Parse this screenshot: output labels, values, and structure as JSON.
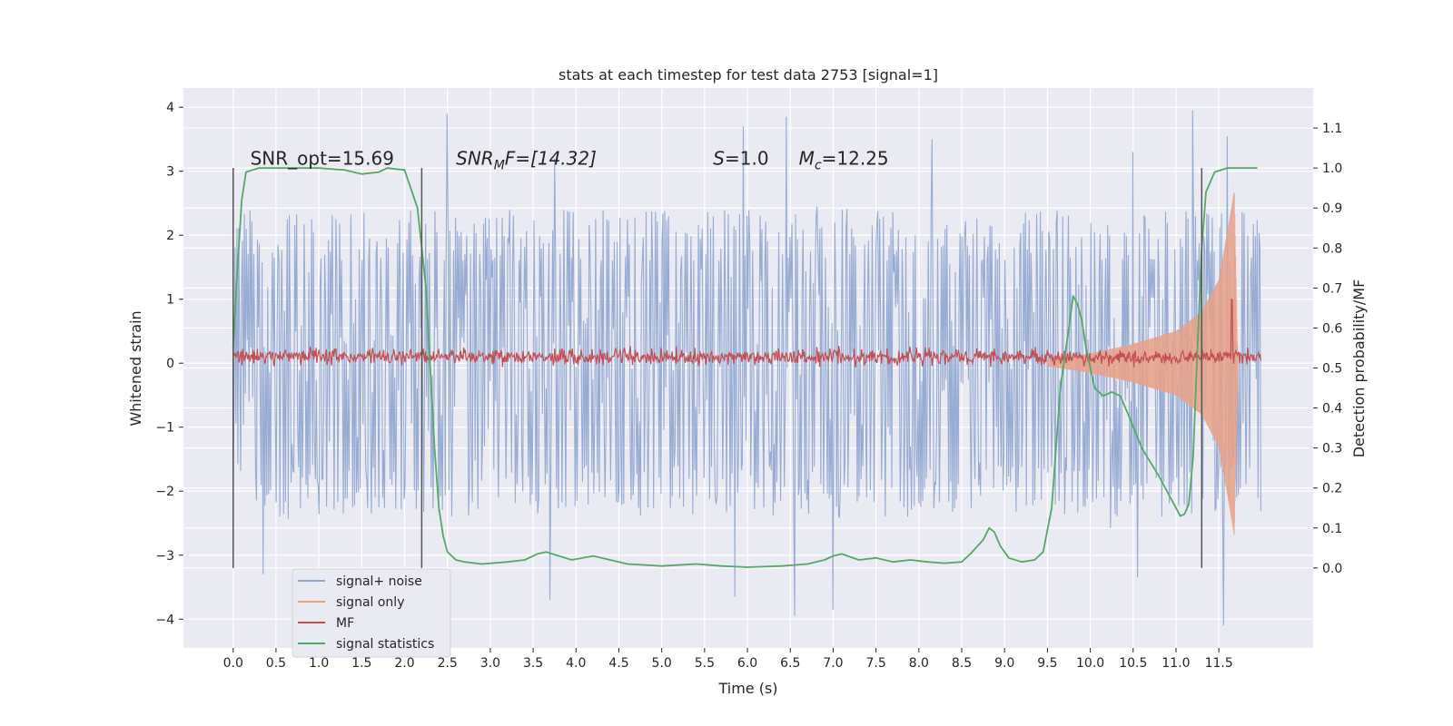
{
  "chart_data": {
    "type": "line",
    "title": "stats at each timestep for test data 2753 [signal=1]",
    "xlabel": "Time (s)",
    "ylabel": "Whitened strain",
    "ylabel_right": "Detection probability/MF",
    "xlim": [
      -0.58,
      12.6
    ],
    "ylim": [
      -4.45,
      4.3
    ],
    "ylim_right": [
      -0.2,
      1.2
    ],
    "x_ticks": [
      0.0,
      0.5,
      1.0,
      1.5,
      2.0,
      2.5,
      3.0,
      3.5,
      4.0,
      4.5,
      5.0,
      5.5,
      6.0,
      6.5,
      7.0,
      7.5,
      8.0,
      8.5,
      9.0,
      9.5,
      10.0,
      10.5,
      11.0,
      11.5
    ],
    "x_tick_labels": [
      "0.0",
      "0.5",
      "1.0",
      "1.5",
      "2.0",
      "2.5",
      "3.0",
      "3.5",
      "4.0",
      "4.5",
      "5.0",
      "5.5",
      "6.0",
      "6.5",
      "7.0",
      "7.5",
      "8.0",
      "8.5",
      "9.0",
      "9.5",
      "10.0",
      "10.5",
      "11.0",
      "11.5"
    ],
    "y_ticks": [
      -4,
      -3,
      -2,
      -1,
      0,
      1,
      2,
      3,
      4
    ],
    "y_tick_labels": [
      "−4",
      "−3",
      "−2",
      "−1",
      "0",
      "1",
      "2",
      "3",
      "4"
    ],
    "y_right_ticks": [
      0.0,
      0.1,
      0.2,
      0.3,
      0.4,
      0.5,
      0.6,
      0.7,
      0.8,
      0.9,
      1.0,
      1.1
    ],
    "y_right_tick_labels": [
      "0.0",
      "0.1",
      "0.2",
      "0.3",
      "0.4",
      "0.5",
      "0.6",
      "0.7",
      "0.8",
      "0.9",
      "1.0",
      "1.1"
    ],
    "grid": true,
    "legend_position": "bottom-left",
    "annotations": [
      {
        "text": "SNR_opt=15.69",
        "x": 0.2,
        "y": 3.1
      },
      {
        "text": "SNR",
        "sub": "M",
        "tail": "F=[14.32]",
        "italic": true,
        "x": 2.6,
        "y": 3.1
      },
      {
        "text": "S",
        "tail": "=1.0",
        "italic": true,
        "x": 5.6,
        "y": 3.1
      },
      {
        "text": "M",
        "sub": "c",
        "tail": "=12.25",
        "italic": true,
        "x": 6.6,
        "y": 3.1
      }
    ],
    "vlines": [
      {
        "x": 0.0,
        "ymin": -3.2,
        "ymax": 3.05
      },
      {
        "x": 2.2,
        "ymin": -3.2,
        "ymax": 3.05
      },
      {
        "x": 11.3,
        "ymin": -3.2,
        "ymax": 3.05
      }
    ],
    "series": [
      {
        "name": "signal+ noise",
        "color": "#92a8d1",
        "axis": "left",
        "style": "dense-noise",
        "x_range": [
          0.0,
          11.99
        ],
        "envelope": [
          2.0,
          -2.0
        ],
        "peaks": [
          {
            "x": 2.5,
            "y": 3.9
          },
          {
            "x": 5.95,
            "y": 3.7
          },
          {
            "x": 6.45,
            "y": 3.85
          },
          {
            "x": 11.2,
            "y": 3.95
          },
          {
            "x": 11.6,
            "y": 3.55
          },
          {
            "x": 3.75,
            "y": 3.2
          },
          {
            "x": 8.15,
            "y": 3.5
          },
          {
            "x": 10.5,
            "y": 3.3
          },
          {
            "x": 3.7,
            "y": -3.7
          },
          {
            "x": 5.85,
            "y": -3.65
          },
          {
            "x": 6.55,
            "y": -3.95
          },
          {
            "x": 7.0,
            "y": -3.85
          },
          {
            "x": 11.55,
            "y": -4.1
          },
          {
            "x": 10.55,
            "y": -3.35
          },
          {
            "x": 0.35,
            "y": -3.3
          }
        ]
      },
      {
        "name": "signal only",
        "color": "#e8a086",
        "axis": "left",
        "style": "chirp",
        "x_range": [
          9.5,
          11.72
        ],
        "amplitude": [
          [
            9.5,
            0.05
          ],
          [
            10.0,
            0.15
          ],
          [
            10.5,
            0.3
          ],
          [
            11.0,
            0.5
          ],
          [
            11.3,
            0.8
          ],
          [
            11.5,
            1.3
          ],
          [
            11.62,
            2.2
          ],
          [
            11.68,
            2.7
          ],
          [
            11.72,
            0.0
          ]
        ]
      },
      {
        "name": "MF",
        "color": "#c44e52",
        "axis": "left",
        "style": "noise-band",
        "x_range": [
          0.0,
          11.99
        ],
        "center": 0.1,
        "spread": 0.1,
        "spike": {
          "x": 11.65,
          "y": 1.0
        }
      },
      {
        "name": "signal statistics",
        "color": "#55a868",
        "axis": "right",
        "style": "line",
        "x": [
          0.0,
          0.05,
          0.1,
          0.15,
          0.3,
          0.6,
          1.0,
          1.3,
          1.5,
          1.7,
          1.8,
          2.0,
          2.15,
          2.25,
          2.3,
          2.35,
          2.4,
          2.45,
          2.5,
          2.55,
          2.6,
          2.7,
          2.9,
          3.2,
          3.4,
          3.55,
          3.65,
          3.8,
          3.95,
          4.2,
          4.4,
          4.6,
          5.0,
          5.4,
          5.7,
          6.0,
          6.4,
          6.7,
          6.9,
          7.0,
          7.1,
          7.3,
          7.5,
          7.7,
          7.9,
          8.1,
          8.3,
          8.5,
          8.6,
          8.75,
          8.82,
          8.88,
          8.95,
          9.05,
          9.2,
          9.35,
          9.45,
          9.55,
          9.65,
          9.75,
          9.8,
          9.85,
          9.9,
          9.95,
          10.05,
          10.15,
          10.25,
          10.35,
          10.45,
          10.6,
          10.8,
          11.0,
          11.05,
          11.1,
          11.15,
          11.2,
          11.25,
          11.3,
          11.35,
          11.45,
          11.6,
          11.8,
          11.95
        ],
        "values": [
          0.55,
          0.75,
          0.92,
          0.99,
          1.0,
          1.0,
          1.0,
          0.995,
          0.985,
          0.99,
          1.0,
          0.995,
          0.9,
          0.7,
          0.5,
          0.3,
          0.15,
          0.08,
          0.04,
          0.03,
          0.02,
          0.015,
          0.01,
          0.015,
          0.02,
          0.035,
          0.04,
          0.03,
          0.02,
          0.03,
          0.02,
          0.01,
          0.005,
          0.01,
          0.005,
          0.002,
          0.005,
          0.01,
          0.02,
          0.03,
          0.035,
          0.02,
          0.025,
          0.015,
          0.02,
          0.015,
          0.012,
          0.015,
          0.035,
          0.07,
          0.1,
          0.09,
          0.055,
          0.025,
          0.015,
          0.02,
          0.04,
          0.15,
          0.45,
          0.6,
          0.68,
          0.66,
          0.62,
          0.55,
          0.45,
          0.43,
          0.44,
          0.43,
          0.38,
          0.3,
          0.23,
          0.15,
          0.13,
          0.135,
          0.16,
          0.28,
          0.55,
          0.8,
          0.94,
          0.99,
          1.0,
          1.0,
          1.0
        ]
      }
    ]
  }
}
